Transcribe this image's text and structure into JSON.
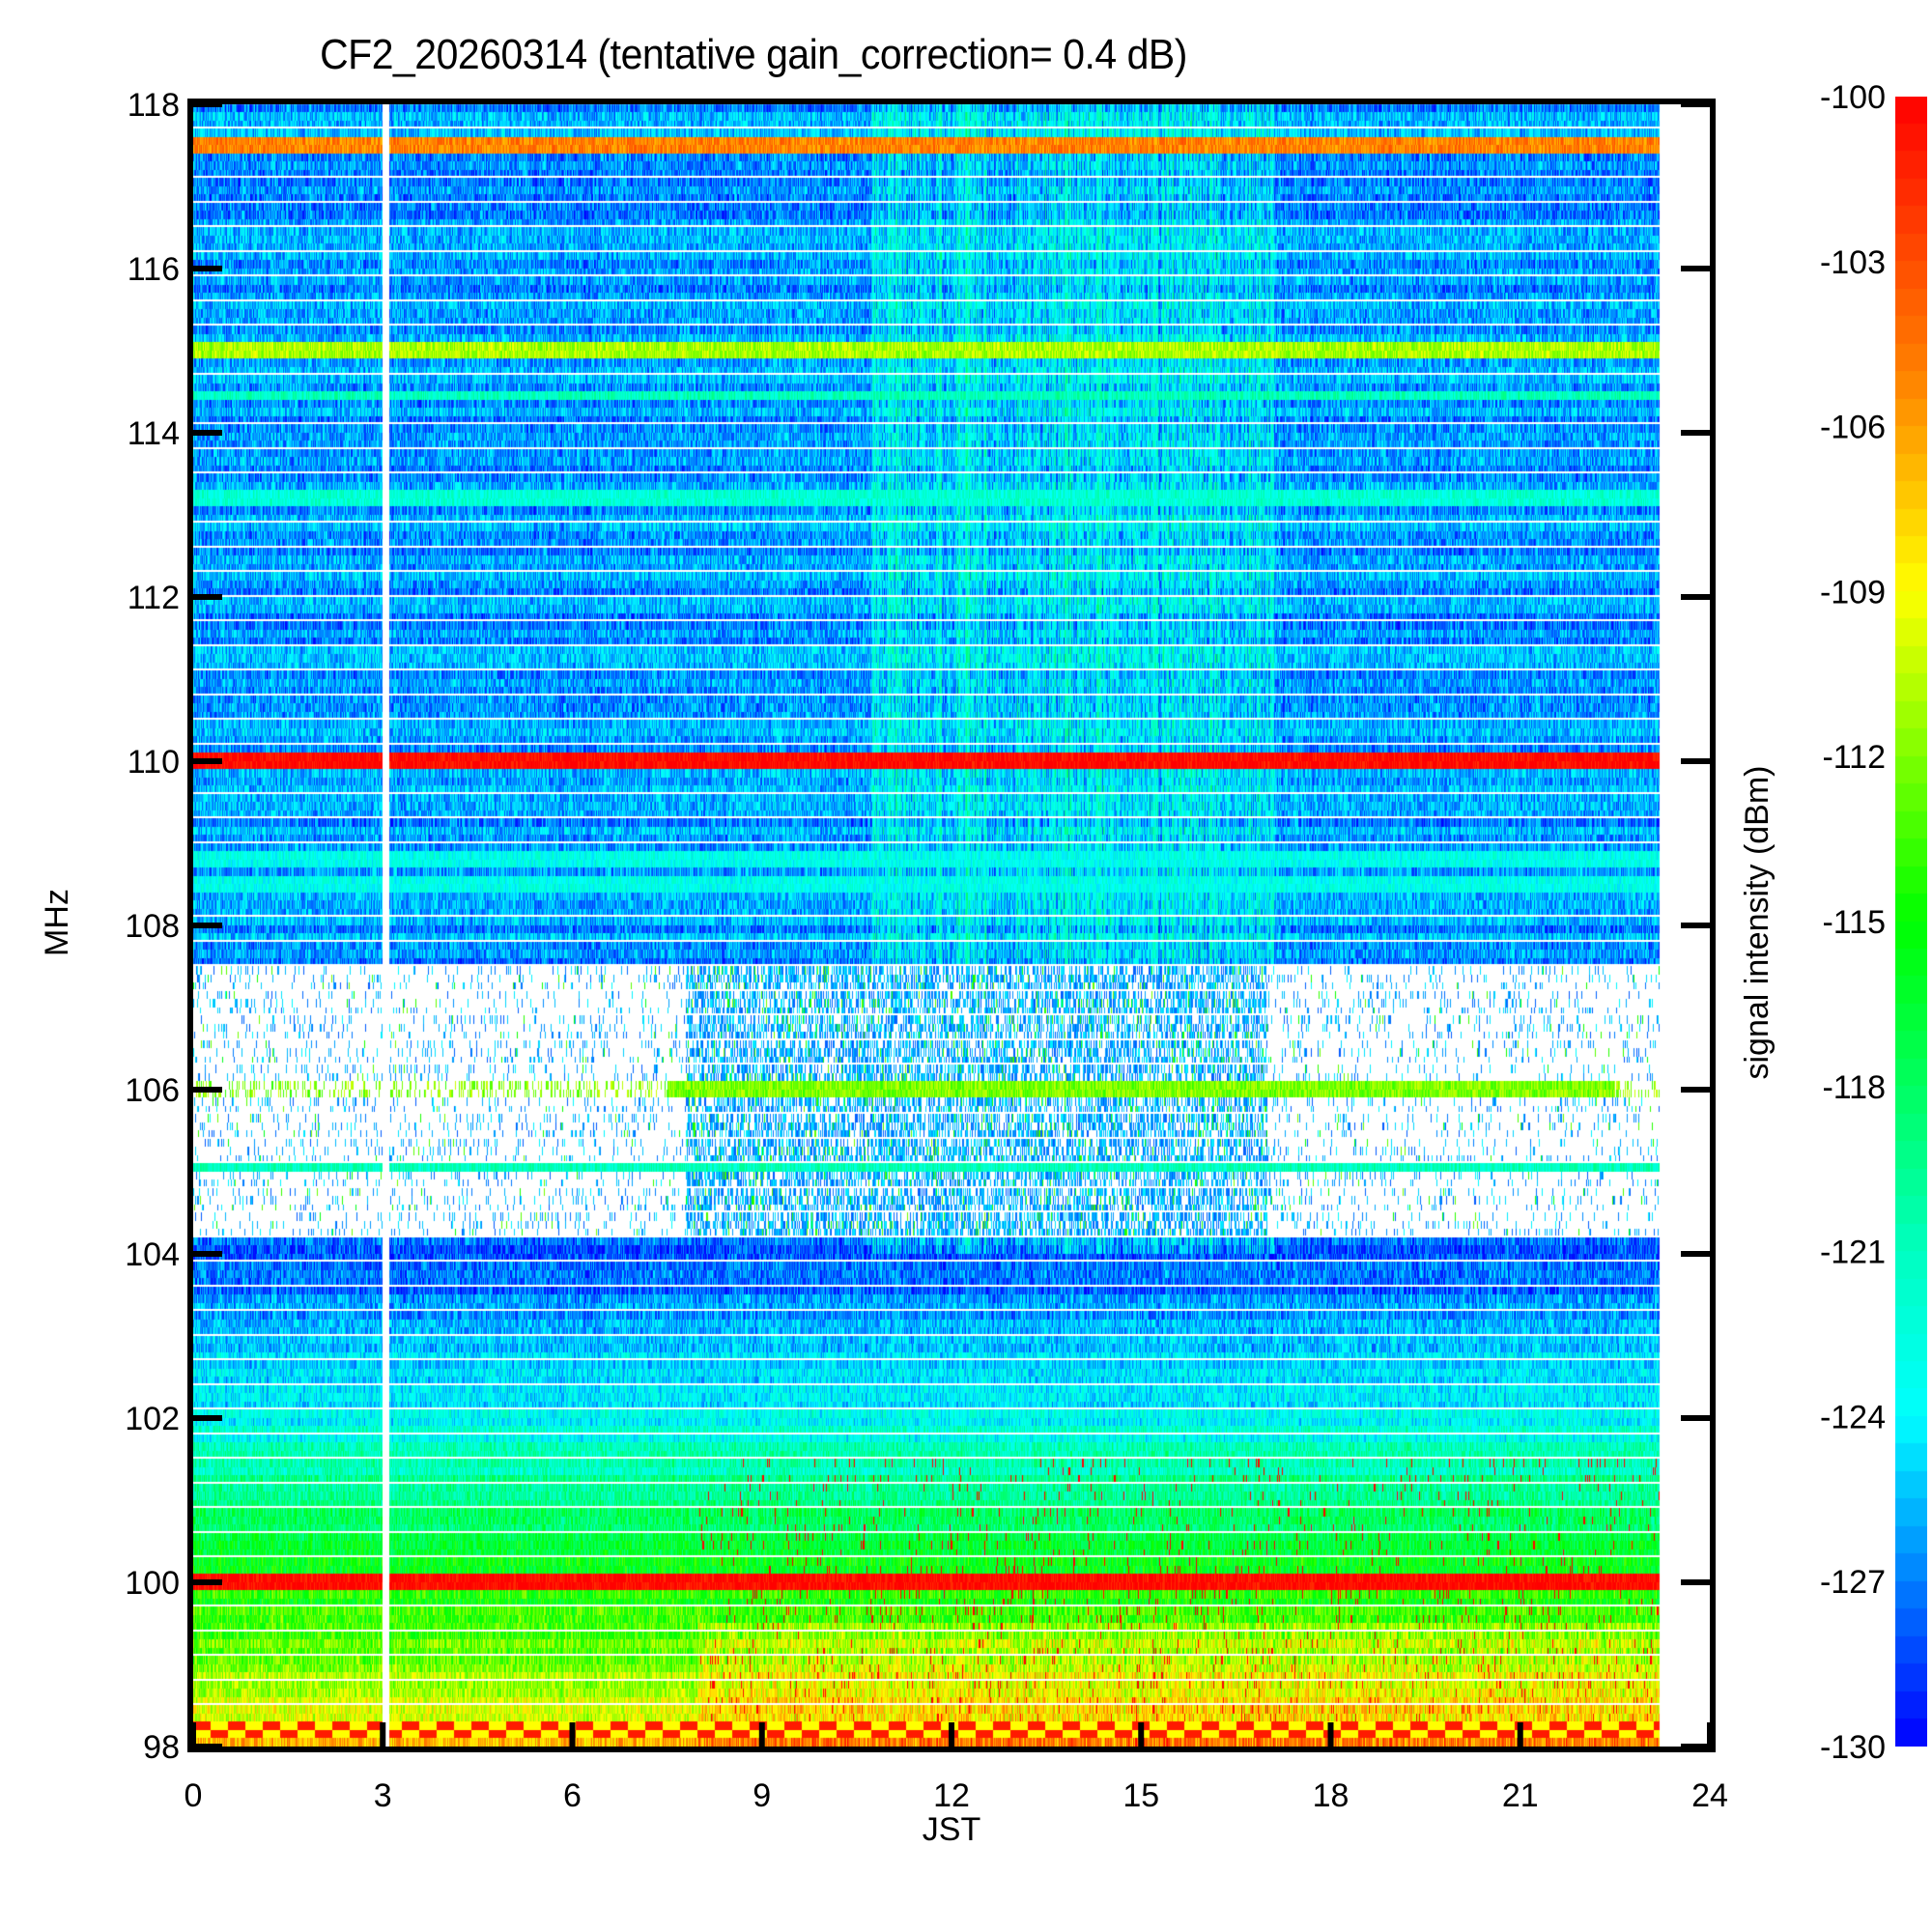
{
  "chart_data": {
    "type": "heatmap",
    "title": "CF2_20260314 (tentative gain_correction=  0.4 dB)",
    "xlabel": "JST",
    "ylabel": "MHz",
    "colorbar_label": "signal intensity (dBm)",
    "xlim": [
      0,
      24
    ],
    "ylim": [
      98,
      118
    ],
    "clim": [
      -130,
      -100
    ],
    "x_ticks": [
      0,
      3,
      6,
      9,
      12,
      15,
      18,
      21,
      24
    ],
    "x_tick_labels": [
      "0",
      "3",
      "6",
      "9",
      "12",
      "15",
      "18",
      "21",
      "24"
    ],
    "y_ticks": [
      98,
      100,
      102,
      104,
      106,
      108,
      110,
      112,
      114,
      116,
      118
    ],
    "y_tick_labels": [
      "98",
      "100",
      "102",
      "104",
      "106",
      "108",
      "110",
      "112",
      "114",
      "116",
      "118"
    ],
    "colorbar_ticks": [
      -100,
      -103,
      -106,
      -109,
      -112,
      -115,
      -118,
      -121,
      -124,
      -127,
      -130
    ],
    "colorbar_tick_labels": [
      "-100",
      "-103",
      "-106",
      "-109",
      "-112",
      "-115",
      "-118",
      "-121",
      "-124",
      "-127",
      "-130"
    ],
    "colormap": "jet",
    "colormap_stops": [
      {
        "value": -130,
        "color": "#0000ff"
      },
      {
        "value": -124,
        "color": "#00ffff"
      },
      {
        "value": -121,
        "color": "#00ffc0"
      },
      {
        "value": -115,
        "color": "#00ff00"
      },
      {
        "value": -109,
        "color": "#ffff00"
      },
      {
        "value": -105,
        "color": "#ff8000"
      },
      {
        "value": -100,
        "color": "#ff0000"
      }
    ],
    "data_time_range_hours": [
      0,
      23.2
    ],
    "data_gap_hours": [
      3.0,
      3.1
    ],
    "missing_value_color": "#ffffff",
    "features": {
      "strong_carriers": [
        {
          "freq_mhz": 117.5,
          "level_dbm": -105,
          "note": "orange/red continuous band"
        },
        {
          "freq_mhz": 115.0,
          "level_dbm": -111,
          "note": "yellow-green continuous band"
        },
        {
          "freq_mhz": 114.4,
          "level_dbm": -121,
          "note": "cyan band"
        },
        {
          "freq_mhz": 113.2,
          "level_dbm": -122,
          "note": "cyan band"
        },
        {
          "freq_mhz": 110.0,
          "level_dbm": -100,
          "note": "saturated red band"
        },
        {
          "freq_mhz": 108.8,
          "level_dbm": -123,
          "note": "cyan band"
        },
        {
          "freq_mhz": 108.5,
          "level_dbm": -123,
          "note": "cyan band"
        },
        {
          "freq_mhz": 106.0,
          "level_dbm": -112,
          "note": "intermittent mixed band"
        },
        {
          "freq_mhz": 105.1,
          "level_dbm": -121,
          "note": "cyan-green continuous band"
        },
        {
          "freq_mhz": 100.0,
          "level_dbm": -100,
          "note": "saturated red band"
        },
        {
          "freq_mhz": 98.2,
          "level_dbm": -101,
          "note": "red/yellow alternating band"
        }
      ],
      "background_gradient": [
        {
          "freq_mhz": 118,
          "level_dbm": -127
        },
        {
          "freq_mhz": 108,
          "level_dbm": -127
        },
        {
          "freq_mhz": 104,
          "level_dbm": -129
        },
        {
          "freq_mhz": 102,
          "level_dbm": -124
        },
        {
          "freq_mhz": 101,
          "level_dbm": -120
        },
        {
          "freq_mhz": 100,
          "level_dbm": -116
        },
        {
          "freq_mhz": 99,
          "level_dbm": -113
        },
        {
          "freq_mhz": 98,
          "level_dbm": -108
        }
      ],
      "missing_band_mhz": [
        104.2,
        107.5
      ],
      "daytime_enhancement_hours": [
        10.7,
        17.1
      ],
      "partial_fill_hours_in_missing_band": [
        7.8,
        17.0
      ]
    }
  }
}
